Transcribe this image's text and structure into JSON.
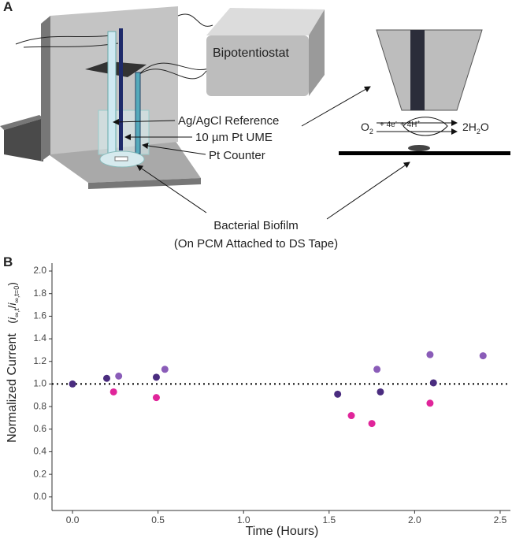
{
  "panel_a": {
    "letter": "A",
    "instrument": "Bipotentiostat",
    "reference": "Ag/AgCl Reference",
    "ume": "10 µm Pt UME",
    "counter": "Pt Counter",
    "reaction": [
      "O",
      "2",
      "+ 4e",
      "-",
      "+ 4H",
      "+",
      "2H",
      "2",
      "O"
    ],
    "biofilm": [
      "Bacterial Biofilm",
      "(On PCM Attached to DS Tape)"
    ]
  },
  "chart_data": {
    "type": "scatter",
    "panel_letter": "B",
    "x_label": "Time (Hours)",
    "y_label": "Normalized Current",
    "y_label_formula": [
      "(",
      "i",
      "∞,t",
      "/",
      "i",
      "∞,t=0",
      ")"
    ],
    "xlim": [
      -0.12,
      2.56
    ],
    "ylim": [
      -0.12,
      2.07
    ],
    "xticks": [
      {
        "value": 0,
        "label": "0.0"
      },
      0.5,
      {
        "value": 1,
        "label": "1.0"
      },
      1.5,
      {
        "value": 2,
        "label": "2.0"
      },
      2.5
    ],
    "yticks": [
      {
        "value": 0,
        "label": "0.0"
      },
      0.2,
      0.4,
      0.6,
      0.8,
      {
        "value": 1,
        "label": "1.0"
      },
      1.2,
      1.4,
      1.6,
      1.8,
      {
        "value": 2,
        "label": "2.0"
      }
    ],
    "reference_line": 1.0,
    "series": [
      {
        "color": "#4a2c7f",
        "x": [
          0,
          0.2,
          0.49,
          1.55,
          1.8,
          2.11
        ],
        "values": [
          1.0,
          1.05,
          1.06,
          0.91,
          0.93,
          1.01
        ]
      },
      {
        "color": "#8a5cb8",
        "x": [
          0.27,
          0.54,
          1.78,
          2.09,
          2.4
        ],
        "values": [
          1.07,
          1.13,
          1.13,
          1.26,
          1.25
        ]
      },
      {
        "color": "#e0259a",
        "x": [
          0.24,
          0.49,
          1.63,
          1.75,
          2.09
        ],
        "values": [
          0.93,
          0.88,
          0.72,
          0.65,
          0.83
        ]
      }
    ]
  }
}
